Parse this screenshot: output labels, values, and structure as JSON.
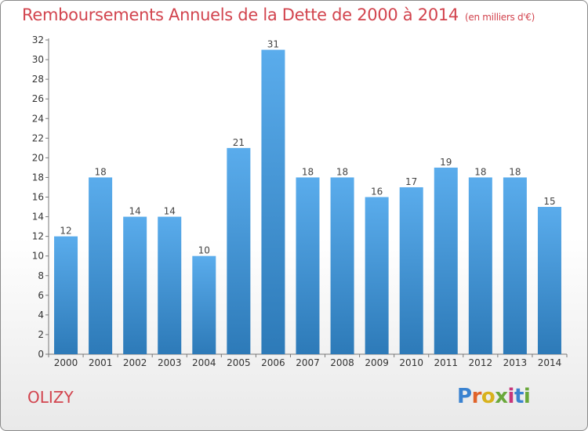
{
  "title": "Remboursements Annuels de la Dette de 2000 à 2014",
  "title_unit": "(en milliers d'€)",
  "location": "OLIZY",
  "logo": "Proxiti",
  "colors": {
    "bar_top": "#5aacec",
    "bar_bottom": "#2d7ab8",
    "title": "#d2444e",
    "axis": "#666666"
  },
  "chart_data": {
    "type": "bar",
    "title": "Remboursements Annuels de la Dette de 2000 à 2014",
    "categories": [
      "2000",
      "2001",
      "2002",
      "2003",
      "2004",
      "2005",
      "2006",
      "2007",
      "2008",
      "2009",
      "2010",
      "2011",
      "2012",
      "2013",
      "2014"
    ],
    "values": [
      12,
      18,
      14,
      14,
      10,
      21,
      31,
      18,
      18,
      16,
      17,
      19,
      18,
      18,
      15
    ],
    "ylim": [
      0,
      32
    ],
    "yticks": [
      0,
      2,
      4,
      6,
      8,
      10,
      12,
      14,
      16,
      18,
      20,
      22,
      24,
      26,
      28,
      30,
      32
    ],
    "grid": false,
    "data_labels": true
  }
}
